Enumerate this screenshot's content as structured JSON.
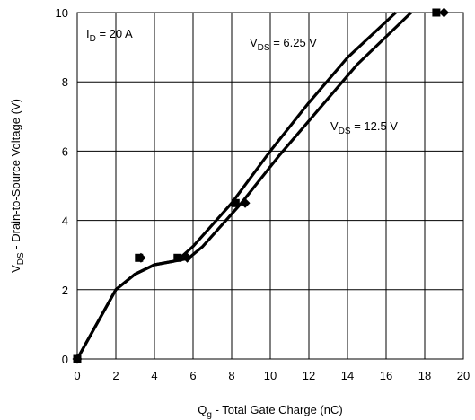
{
  "chart_data": {
    "type": "line",
    "xlabel": {
      "main": "Q",
      "sub": "g",
      "rest": " - Total Gate Charge (nC)"
    },
    "ylabel": {
      "main": "V",
      "sub": "DS",
      "rest": " - Drain-to-Source Voltage (V)"
    },
    "xlim": [
      0,
      20
    ],
    "ylim": [
      0,
      10
    ],
    "xticks": [
      0,
      2,
      4,
      6,
      8,
      10,
      12,
      14,
      16,
      18,
      20
    ],
    "yticks": [
      0,
      2,
      4,
      6,
      8,
      10
    ],
    "grid": true,
    "annotations": [
      {
        "main": "I",
        "sub": "D",
        "rest": " = 20 A"
      },
      {
        "main": "V",
        "sub": "DS",
        "rest": " = 6.25 V"
      },
      {
        "main": "V",
        "sub": "DS",
        "rest": " = 12.5 V"
      }
    ],
    "series": [
      {
        "label_ref": 1,
        "marker": "square",
        "x": [
          0,
          2.0,
          3.0,
          4.0,
          5.0,
          5.3,
          6.0,
          8.0,
          10.0,
          12.0,
          14.0,
          16.5
        ],
        "y": [
          0,
          2.0,
          2.45,
          2.72,
          2.82,
          2.9,
          3.25,
          4.5,
          6.0,
          7.4,
          8.7,
          10.0
        ],
        "marker_points": [
          [
            0,
            0
          ],
          [
            3.2,
            2.92
          ],
          [
            5.2,
            2.92
          ],
          [
            8.2,
            4.5
          ],
          [
            18.6,
            10.0
          ]
        ]
      },
      {
        "label_ref": 2,
        "marker": "diamond",
        "x": [
          0,
          2.0,
          3.0,
          4.0,
          5.0,
          5.75,
          6.5,
          8.5,
          10.5,
          12.5,
          14.5,
          17.3
        ],
        "y": [
          0,
          2.0,
          2.45,
          2.72,
          2.82,
          2.9,
          3.25,
          4.5,
          5.9,
          7.2,
          8.5,
          10.0
        ],
        "marker_points": [
          [
            0,
            0
          ],
          [
            3.3,
            2.92
          ],
          [
            5.7,
            2.92
          ],
          [
            8.7,
            4.5
          ],
          [
            19.0,
            10.0
          ]
        ]
      }
    ]
  }
}
